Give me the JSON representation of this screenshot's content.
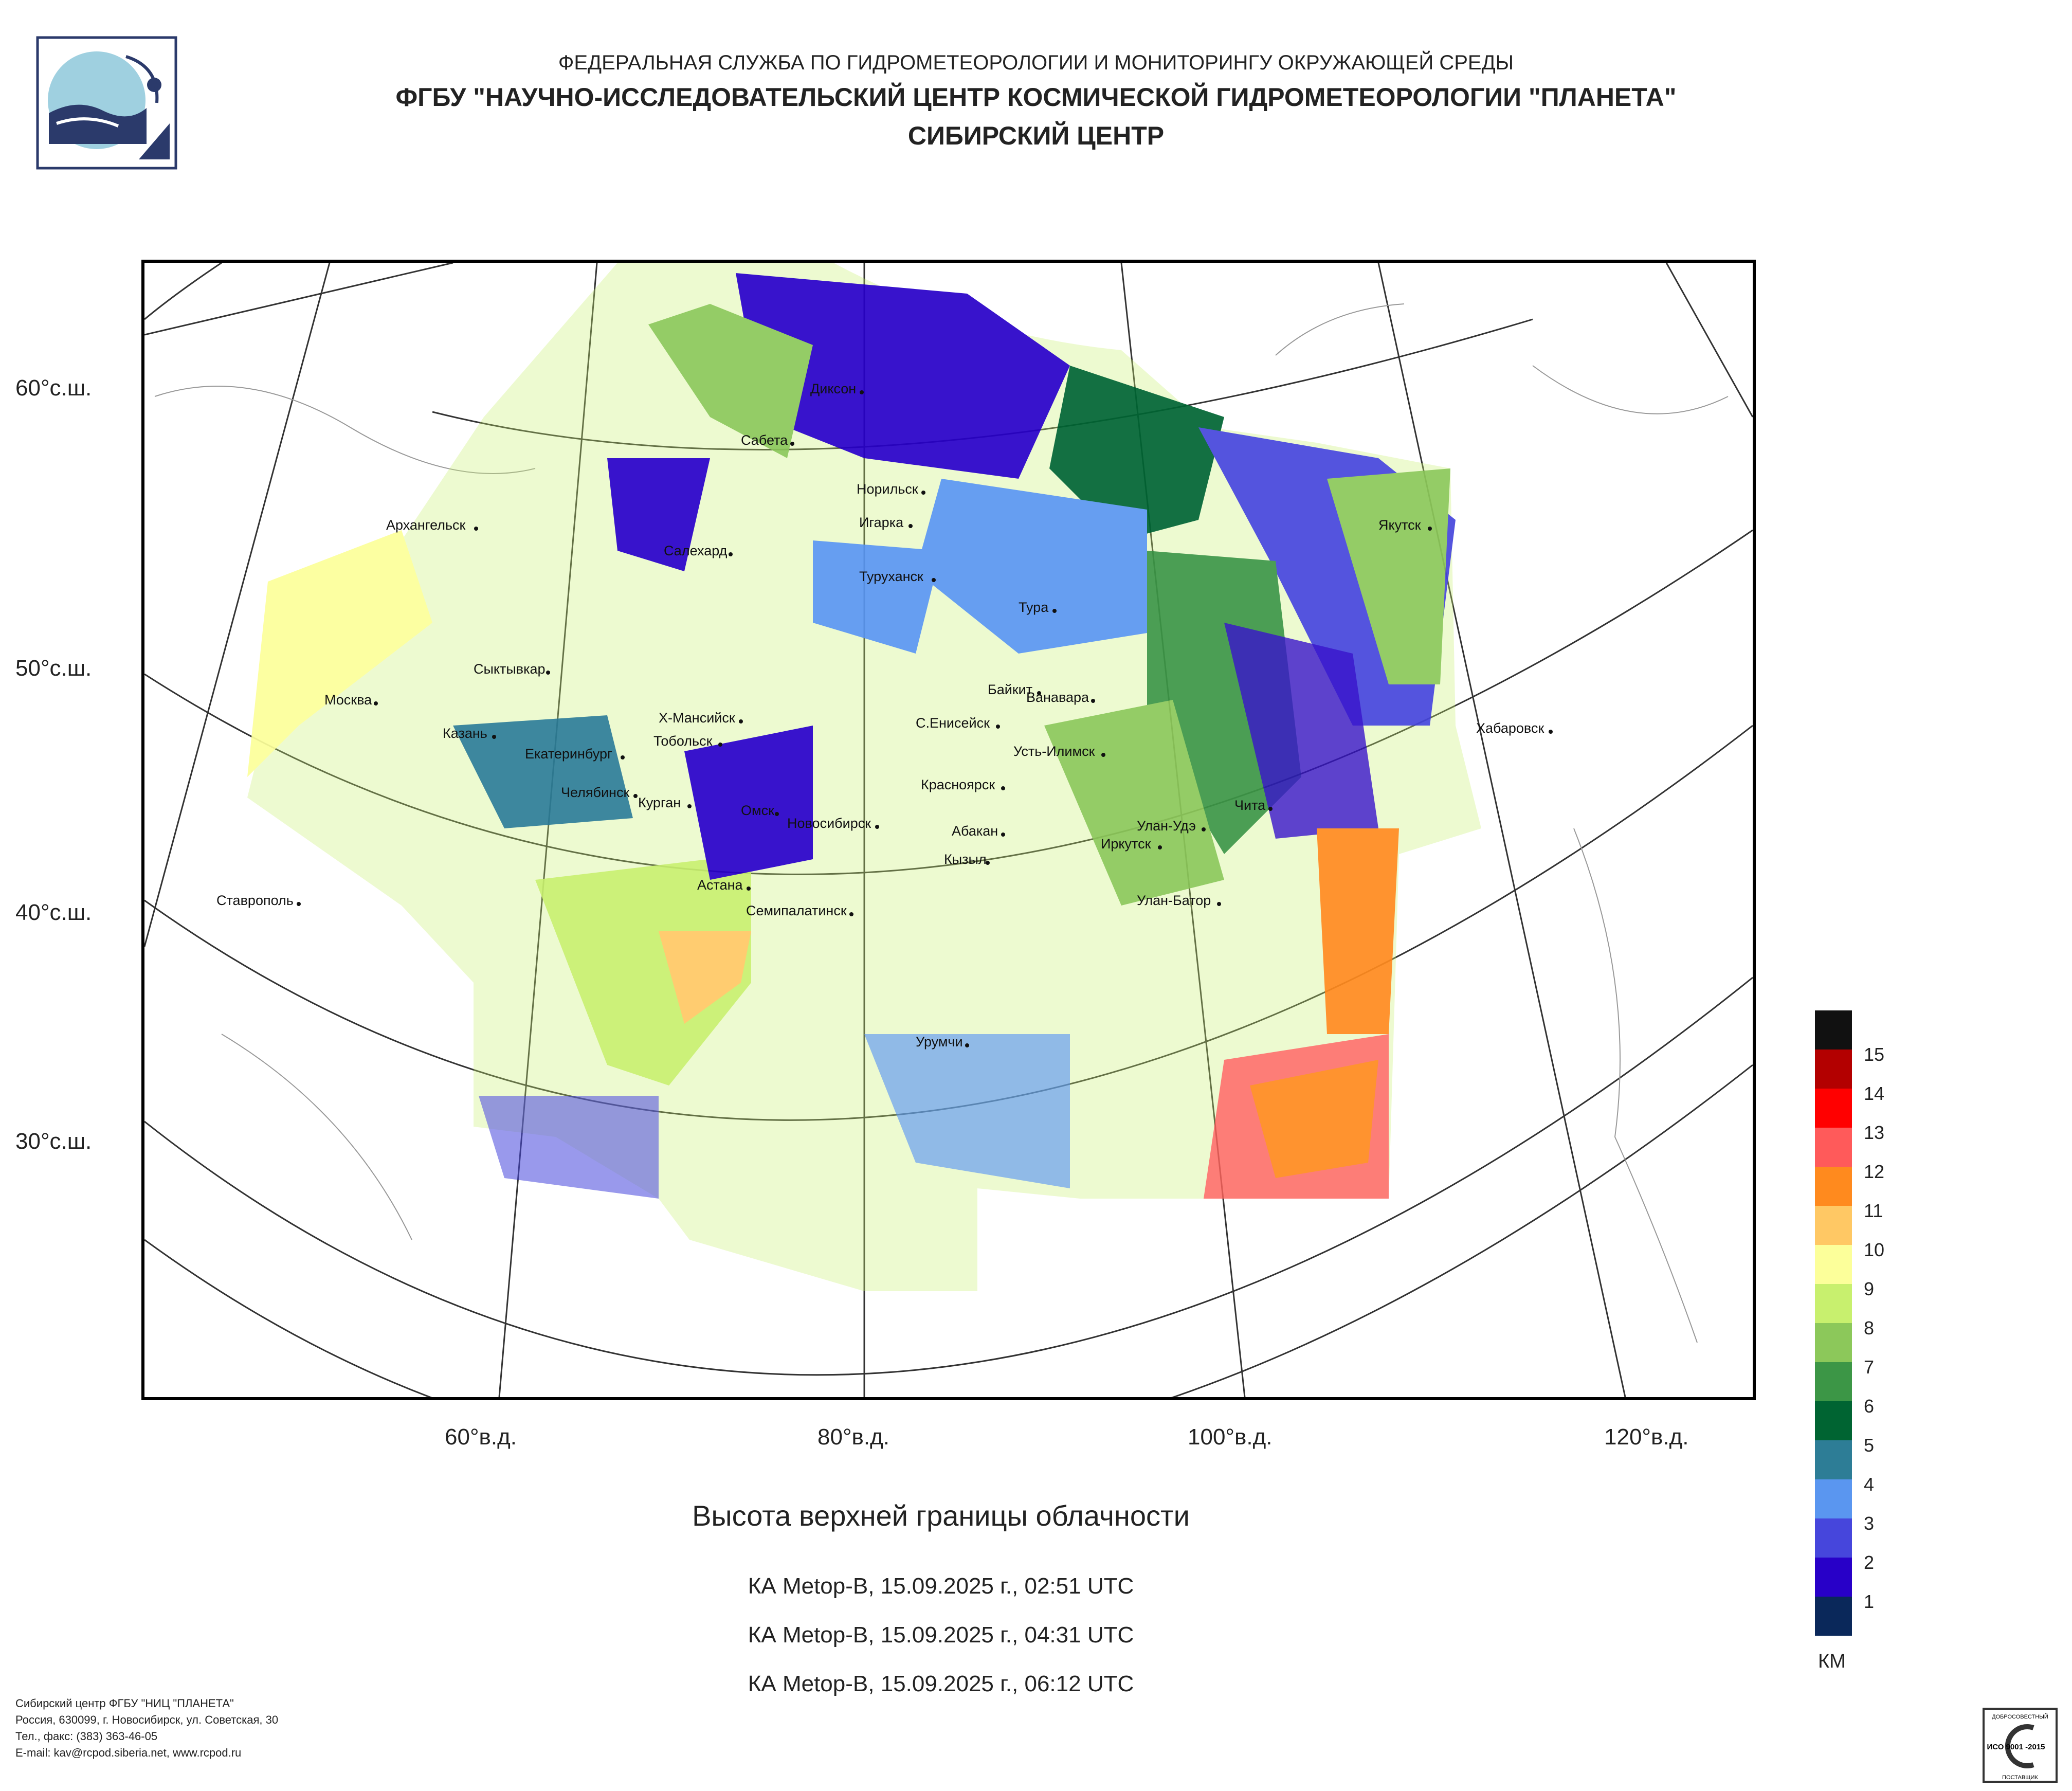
{
  "header": {
    "line1": "ФЕДЕРАЛЬНАЯ СЛУЖБА ПО ГИДРОМЕТЕОРОЛОГИИ И МОНИТОРИНГУ ОКРУЖАЮЩЕЙ СРЕДЫ",
    "line2": "ФГБУ \"НАУЧНО-ИССЛЕДОВАТЕЛЬСКИЙ ЦЕНТР КОСМИЧЕСКОЙ ГИДРОМЕТЕОРОЛОГИИ \"ПЛАНЕТА\"",
    "line3": "СИБИРСКИЙ ЦЕНТР"
  },
  "latitude_labels": [
    "60°с.ш.",
    "50°с.ш.",
    "40°с.ш.",
    "30°с.ш."
  ],
  "longitude_labels": [
    "60°в.д.",
    "80°в.д.",
    "100°в.д.",
    "120°в.д."
  ],
  "cities": [
    "Диксон",
    "Сабета",
    "Норильск",
    "Архангельск",
    "Игарка",
    "Салехард",
    "Туруханск",
    "Якутск",
    "Тура",
    "Сыктывкар",
    "Байкит",
    "Ванавара",
    "Москва",
    "Х-Мансийск",
    "С.Енисейск",
    "Усть-Илимск",
    "Хабаровск",
    "Казань",
    "Тобольск",
    "Екатеринбург",
    "Красноярск",
    "Челябинск",
    "Курган",
    "Чита",
    "Омск",
    "Новосибирск",
    "Улан-Удэ",
    "Абакан",
    "Иркутск",
    "Кызыл",
    "Астана",
    "Ставрополь",
    "Улан-Батор",
    "Семипалатинск",
    "Урумчи"
  ],
  "caption": "Высота верхней границы облачности",
  "passes": [
    "КА Metop-B, 15.09.2025 г., 02:51 UTC",
    "КА Metop-B, 15.09.2025 г., 04:31 UTC",
    "КА Metop-B, 15.09.2025 г., 06:12 UTC"
  ],
  "legend": {
    "unit": "КМ",
    "levels": [
      "15",
      "14",
      "13",
      "12",
      "11",
      "10",
      "9",
      "8",
      "7",
      "6",
      "5",
      "4",
      "3",
      "2",
      "1"
    ],
    "colors": [
      "#111111",
      "#b30000",
      "#ff0000",
      "#ff5a5a",
      "#ff8a1e",
      "#ffc864",
      "#fcff9a",
      "#c8f06e",
      "#8cc85a",
      "#3c9646",
      "#006432",
      "#2d7d96",
      "#5a96f0",
      "#4646dc",
      "#2800c8",
      "#0a285a"
    ]
  },
  "footer": {
    "line1": "Сибирский центр ФГБУ \"НИЦ \"ПЛАНЕТА\"",
    "line2": "Россия, 630099, г. Новосибирск, ул. Советская, 30",
    "line3": "Тел., факс: (383) 363-46-05",
    "line4": "E-mail: kav@rcpod.siberia.net, www.rcpod.ru"
  },
  "iso_badge": {
    "top": "ДОБРОСОВЕСТНЫЙ",
    "mid": "ИСО 9001 -2015",
    "bottom": "ПОСТАВЩИК"
  }
}
